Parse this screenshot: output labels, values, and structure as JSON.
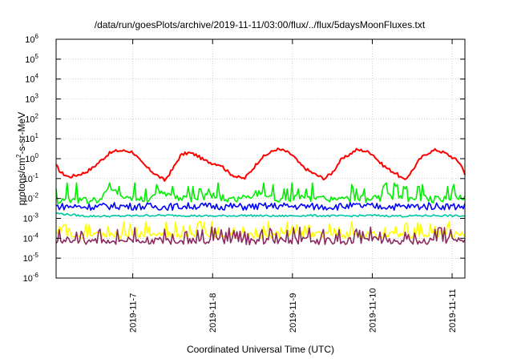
{
  "chart_data": {
    "type": "line",
    "title": "/data/run/goesPlots/archive/2019-11-11/03:00/flux/../flux/5daysMoonFluxes.txt",
    "xlabel": "Coordinated Universal Time (UTC)",
    "ylabel": {
      "base": "protons/cm",
      "sup": "2",
      "rest": "-s-sr-MeV"
    },
    "y_scale": "log",
    "ylim_exp": [
      -6,
      6
    ],
    "y_ticks": [
      {
        "exp": -6,
        "label": "10",
        "sup": "-6"
      },
      {
        "exp": -5,
        "label": "10",
        "sup": "-5"
      },
      {
        "exp": -4,
        "label": "10",
        "sup": "-4"
      },
      {
        "exp": -3,
        "label": "10",
        "sup": "-3"
      },
      {
        "exp": -2,
        "label": "10",
        "sup": "-2"
      },
      {
        "exp": -1,
        "label": "10",
        "sup": "-1"
      },
      {
        "exp": 0,
        "label": "10",
        "sup": "0"
      },
      {
        "exp": 1,
        "label": "10",
        "sup": "1"
      },
      {
        "exp": 2,
        "label": "10",
        "sup": "2"
      },
      {
        "exp": 3,
        "label": "10",
        "sup": "3"
      },
      {
        "exp": 4,
        "label": "10",
        "sup": "4"
      },
      {
        "exp": 5,
        "label": "10",
        "sup": "5"
      },
      {
        "exp": 6,
        "label": "10",
        "sup": "6"
      }
    ],
    "x_range_days": [
      6.04,
      11.16
    ],
    "x_ticks": [
      {
        "day": 7,
        "label": "2019-11-7"
      },
      {
        "day": 8,
        "label": "2019-11-8"
      },
      {
        "day": 9,
        "label": "2019-11-9"
      },
      {
        "day": 10,
        "label": "2019-11-10"
      },
      {
        "day": 11,
        "label": "2019-11-11"
      }
    ],
    "grid": true,
    "legend": "none",
    "series": [
      {
        "color": "#ff0000",
        "x": [
          6.04,
          6.1,
          6.2,
          6.3,
          6.4,
          6.5,
          6.6,
          6.7,
          6.8,
          6.9,
          7.0,
          7.1,
          7.2,
          7.3,
          7.4,
          7.5,
          7.6,
          7.7,
          7.8,
          7.9,
          8.0,
          8.1,
          8.2,
          8.3,
          8.4,
          8.5,
          8.6,
          8.7,
          8.8,
          8.9,
          9.0,
          9.1,
          9.2,
          9.3,
          9.4,
          9.5,
          9.6,
          9.7,
          9.8,
          9.9,
          10.0,
          10.1,
          10.2,
          10.3,
          10.4,
          10.5,
          10.6,
          10.7,
          10.8,
          10.9,
          11.0,
          11.1,
          11.16
        ],
        "values": [
          0.45,
          0.2,
          0.12,
          0.15,
          0.2,
          0.35,
          0.8,
          1.8,
          2.5,
          2.5,
          2.2,
          0.7,
          0.3,
          0.15,
          0.08,
          0.3,
          1.5,
          2.0,
          1.5,
          0.8,
          0.6,
          0.5,
          0.2,
          0.12,
          0.1,
          0.3,
          1.0,
          1.8,
          3.0,
          2.5,
          1.5,
          0.5,
          0.25,
          0.15,
          0.1,
          0.2,
          0.8,
          1.5,
          2.8,
          2.5,
          1.8,
          0.6,
          0.3,
          0.18,
          0.08,
          0.25,
          1.0,
          2.0,
          2.8,
          2.0,
          1.2,
          0.6,
          0.18
        ]
      },
      {
        "color": "#00ee00",
        "x": [
          6.04,
          6.2,
          6.4,
          6.6,
          6.7,
          6.9,
          7.0,
          7.2,
          7.4,
          7.6,
          7.8,
          8.0,
          8.2,
          8.4,
          8.6,
          8.8,
          9.0,
          9.2,
          9.4,
          9.6,
          9.8,
          10.0,
          10.2,
          10.4,
          10.6,
          10.8,
          11.0,
          11.16
        ],
        "values": [
          0.008,
          0.009,
          0.008,
          0.009,
          0.03,
          0.01,
          0.009,
          0.01,
          0.02,
          0.009,
          0.01,
          0.015,
          0.009,
          0.01,
          0.02,
          0.009,
          0.011,
          0.009,
          0.01,
          0.009,
          0.01,
          0.009,
          0.012,
          0.009,
          0.01,
          0.009,
          0.012,
          0.012
        ],
        "spikes": [
          0.04,
          0.06,
          0.05,
          0.03,
          0.05
        ]
      },
      {
        "color": "#00c8a0",
        "x": [
          6.04,
          6.4,
          6.8,
          7.2,
          7.6,
          8.0,
          8.4,
          8.8,
          9.2,
          9.6,
          10.0,
          10.4,
          10.8,
          11.16
        ],
        "values": [
          0.0018,
          0.0013,
          0.0013,
          0.0014,
          0.0014,
          0.0013,
          0.0014,
          0.0013,
          0.0014,
          0.0013,
          0.0014,
          0.0013,
          0.0014,
          0.0013
        ]
      },
      {
        "color": "#0000ff",
        "x": [
          6.04,
          6.2,
          6.4,
          6.6,
          6.8,
          7.0,
          7.2,
          7.4,
          7.6,
          7.8,
          8.0,
          8.2,
          8.4,
          8.6,
          8.8,
          9.0,
          9.2,
          9.4,
          9.6,
          9.8,
          10.0,
          10.2,
          10.4,
          10.6,
          10.8,
          11.0,
          11.16
        ],
        "values": [
          0.004,
          0.004,
          0.0038,
          0.004,
          0.0042,
          0.004,
          0.004,
          0.0038,
          0.004,
          0.0042,
          0.004,
          0.004,
          0.0038,
          0.004,
          0.0042,
          0.004,
          0.004,
          0.0038,
          0.004,
          0.0042,
          0.004,
          0.004,
          0.0038,
          0.004,
          0.0042,
          0.004,
          0.004
        ]
      },
      {
        "color": "#ffff00",
        "x": [
          6.04,
          6.5,
          7.0,
          7.5,
          8.0,
          8.5,
          9.0,
          9.5,
          10.0,
          10.5,
          11.0,
          11.16
        ],
        "values": [
          0.00015,
          0.00014,
          0.00015,
          0.00014,
          0.00015,
          0.00014,
          0.00015,
          0.00014,
          0.00015,
          0.00014,
          0.00015,
          0.00015
        ]
      },
      {
        "color": "#8b2a60",
        "x": [
          6.04,
          6.5,
          7.0,
          7.5,
          8.0,
          8.5,
          9.0,
          9.5,
          10.0,
          10.5,
          11.0,
          11.16
        ],
        "values": [
          8e-05,
          7e-05,
          8e-05,
          7e-05,
          8e-05,
          7e-05,
          8e-05,
          7e-05,
          8e-05,
          7e-05,
          8e-05,
          8e-05
        ]
      }
    ]
  }
}
